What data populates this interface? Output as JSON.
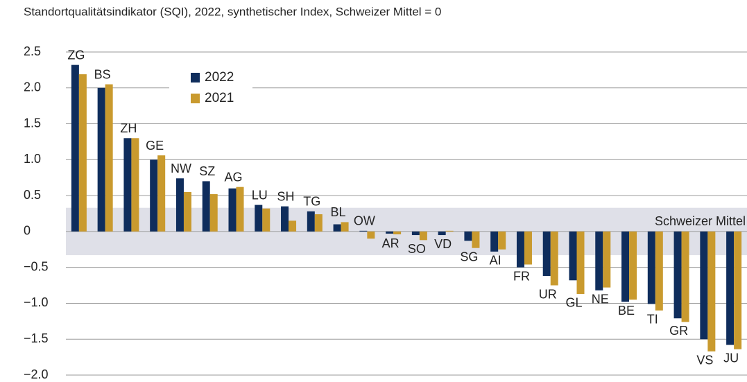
{
  "chart_data": {
    "type": "bar",
    "title": "Standortqualitätsindikator (SQI), 2022, synthetischer Index, Schweizer Mittel = 0",
    "categories": [
      "ZG",
      "BS",
      "ZH",
      "GE",
      "NW",
      "SZ",
      "AG",
      "LU",
      "SH",
      "TG",
      "BL",
      "OW",
      "AR",
      "SO",
      "VD",
      "SG",
      "AI",
      "FR",
      "UR",
      "GL",
      "NE",
      "BE",
      "TI",
      "GR",
      "VS",
      "JU"
    ],
    "series": [
      {
        "name": "2022",
        "color": "#0f2d5c",
        "values": [
          2.32,
          2.0,
          1.3,
          1.0,
          0.74,
          0.7,
          0.6,
          0.37,
          0.35,
          0.28,
          0.1,
          0.01,
          -0.03,
          -0.05,
          -0.05,
          -0.13,
          -0.28,
          -0.5,
          -0.62,
          -0.68,
          -0.82,
          -0.98,
          -1.01,
          -1.21,
          -1.5,
          -1.58
        ]
      },
      {
        "name": "2021",
        "color": "#c99a2e",
        "values": [
          2.19,
          2.05,
          1.3,
          1.06,
          0.55,
          0.52,
          0.62,
          0.32,
          0.15,
          0.24,
          0.13,
          -0.1,
          -0.04,
          -0.12,
          0.01,
          -0.23,
          -0.25,
          -0.46,
          -0.75,
          -0.87,
          -0.78,
          -0.95,
          -1.1,
          -1.26,
          -1.67,
          -1.64
        ]
      }
    ],
    "ylim": [
      -2.0,
      2.5
    ],
    "yticks": [
      {
        "value": -2.0,
        "label": "−2.0"
      },
      {
        "value": -1.5,
        "label": "−1.5"
      },
      {
        "value": -1.0,
        "label": "−1.0"
      },
      {
        "value": -0.5,
        "label": "−0.5"
      },
      0,
      0.5,
      {
        "value": 1.0,
        "label": "1.0"
      },
      1.5,
      {
        "value": 2.0,
        "label": "2.0"
      },
      2.5
    ],
    "grid": true,
    "mean_band": [
      -0.33,
      0.33
    ],
    "mean_label": "Schweizer Mittel"
  }
}
